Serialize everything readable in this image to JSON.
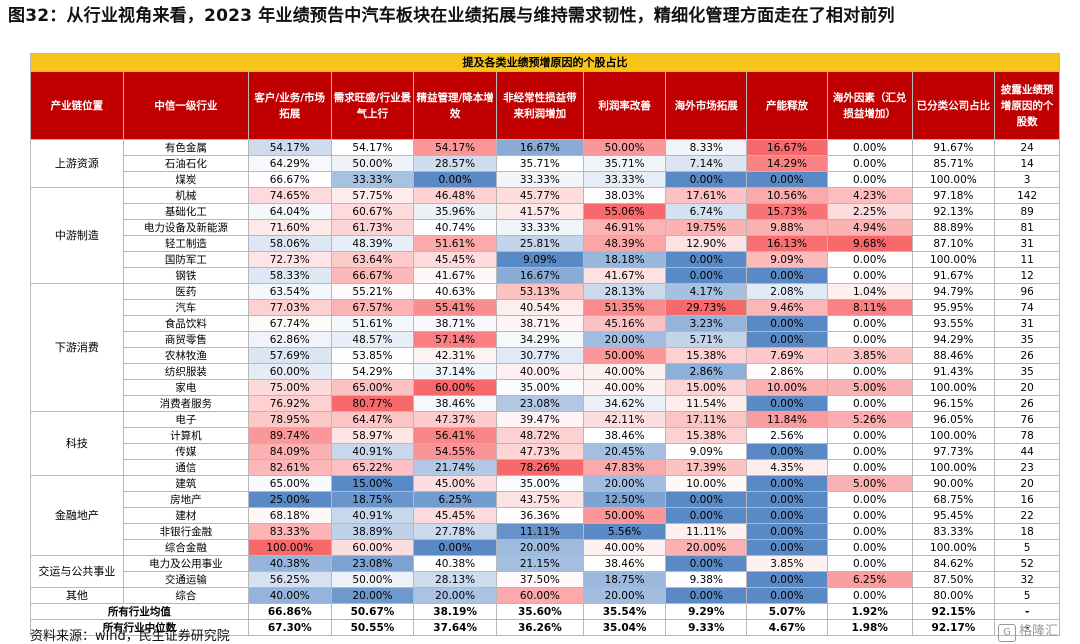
{
  "title": "图32：从行业视角来看，2023 年业绩预告中汽车板块在业绩拓展与维持需求韧性，精细化管理方面走在了相对前列",
  "table": {
    "banner": "提及各类业绩预增原因的个股占比",
    "headers": [
      "产业链位置",
      "中信一级行业",
      "客户/业务/市场拓展",
      "需求旺盛/行业景气上行",
      "精益管理/降本增效",
      "非经常性损益带来利润增加",
      "利润率改善",
      "海外市场拓展",
      "产能释放",
      "海外因素（汇兑损益增加）",
      "已分类公司占比",
      "披露业绩预增原因的个股数"
    ],
    "groups": [
      {
        "name": "上游资源",
        "rows": [
          {
            "industry": "有色金属",
            "v": [
              "54.17%",
              "54.17%",
              "54.17%",
              "16.67%",
              "50.00%",
              "8.33%",
              "16.67%",
              "0.00%",
              "91.67%"
            ],
            "n": "24"
          },
          {
            "industry": "石油石化",
            "v": [
              "64.29%",
              "50.00%",
              "28.57%",
              "35.71%",
              "35.71%",
              "7.14%",
              "14.29%",
              "0.00%",
              "85.71%"
            ],
            "n": "14"
          },
          {
            "industry": "煤炭",
            "v": [
              "66.67%",
              "33.33%",
              "0.00%",
              "33.33%",
              "33.33%",
              "0.00%",
              "0.00%",
              "0.00%",
              "100.00%"
            ],
            "n": "3"
          }
        ]
      },
      {
        "name": "中游制造",
        "rows": [
          {
            "industry": "机械",
            "v": [
              "74.65%",
              "57.75%",
              "46.48%",
              "45.77%",
              "38.03%",
              "17.61%",
              "10.56%",
              "4.23%",
              "97.18%"
            ],
            "n": "142"
          },
          {
            "industry": "基础化工",
            "v": [
              "64.04%",
              "60.67%",
              "35.96%",
              "41.57%",
              "55.06%",
              "6.74%",
              "15.73%",
              "2.25%",
              "92.13%"
            ],
            "n": "89"
          },
          {
            "industry": "电力设备及新能源",
            "v": [
              "71.60%",
              "61.73%",
              "40.74%",
              "33.33%",
              "46.91%",
              "19.75%",
              "9.88%",
              "4.94%",
              "88.89%"
            ],
            "n": "81"
          },
          {
            "industry": "轻工制造",
            "v": [
              "58.06%",
              "48.39%",
              "51.61%",
              "25.81%",
              "48.39%",
              "12.90%",
              "16.13%",
              "9.68%",
              "87.10%"
            ],
            "n": "31"
          },
          {
            "industry": "国防军工",
            "v": [
              "72.73%",
              "63.64%",
              "45.45%",
              "9.09%",
              "18.18%",
              "0.00%",
              "9.09%",
              "0.00%",
              "100.00%"
            ],
            "n": "11"
          },
          {
            "industry": "钢铁",
            "v": [
              "58.33%",
              "66.67%",
              "41.67%",
              "16.67%",
              "41.67%",
              "0.00%",
              "0.00%",
              "0.00%",
              "91.67%"
            ],
            "n": "12"
          }
        ]
      },
      {
        "name": "下游消费",
        "rows": [
          {
            "industry": "医药",
            "v": [
              "63.54%",
              "55.21%",
              "40.63%",
              "53.13%",
              "28.13%",
              "4.17%",
              "2.08%",
              "1.04%",
              "94.79%"
            ],
            "n": "96"
          },
          {
            "industry": "汽车",
            "v": [
              "77.03%",
              "67.57%",
              "55.41%",
              "40.54%",
              "51.35%",
              "29.73%",
              "9.46%",
              "8.11%",
              "95.95%"
            ],
            "n": "74"
          },
          {
            "industry": "食品饮料",
            "v": [
              "67.74%",
              "51.61%",
              "38.71%",
              "38.71%",
              "45.16%",
              "3.23%",
              "0.00%",
              "0.00%",
              "93.55%"
            ],
            "n": "31"
          },
          {
            "industry": "商贸零售",
            "v": [
              "62.86%",
              "48.57%",
              "57.14%",
              "34.29%",
              "20.00%",
              "5.71%",
              "0.00%",
              "0.00%",
              "94.29%"
            ],
            "n": "35"
          },
          {
            "industry": "农林牧渔",
            "v": [
              "57.69%",
              "53.85%",
              "42.31%",
              "30.77%",
              "50.00%",
              "15.38%",
              "7.69%",
              "3.85%",
              "88.46%"
            ],
            "n": "26"
          },
          {
            "industry": "纺织服装",
            "v": [
              "60.00%",
              "54.29%",
              "37.14%",
              "40.00%",
              "40.00%",
              "2.86%",
              "2.86%",
              "0.00%",
              "91.43%"
            ],
            "n": "35"
          },
          {
            "industry": "家电",
            "v": [
              "75.00%",
              "65.00%",
              "60.00%",
              "35.00%",
              "40.00%",
              "15.00%",
              "10.00%",
              "5.00%",
              "100.00%"
            ],
            "n": "20"
          },
          {
            "industry": "消费者服务",
            "v": [
              "76.92%",
              "80.77%",
              "38.46%",
              "23.08%",
              "34.62%",
              "11.54%",
              "0.00%",
              "0.00%",
              "96.15%"
            ],
            "n": "26"
          }
        ]
      },
      {
        "name": "科技",
        "rows": [
          {
            "industry": "电子",
            "v": [
              "78.95%",
              "64.47%",
              "47.37%",
              "39.47%",
              "42.11%",
              "17.11%",
              "11.84%",
              "5.26%",
              "96.05%"
            ],
            "n": "76"
          },
          {
            "industry": "计算机",
            "v": [
              "89.74%",
              "58.97%",
              "56.41%",
              "48.72%",
              "38.46%",
              "15.38%",
              "2.56%",
              "0.00%",
              "100.00%"
            ],
            "n": "78"
          },
          {
            "industry": "传媒",
            "v": [
              "84.09%",
              "40.91%",
              "54.55%",
              "47.73%",
              "20.45%",
              "9.09%",
              "0.00%",
              "0.00%",
              "97.73%"
            ],
            "n": "44"
          },
          {
            "industry": "通信",
            "v": [
              "82.61%",
              "65.22%",
              "21.74%",
              "78.26%",
              "47.83%",
              "17.39%",
              "4.35%",
              "0.00%",
              "100.00%"
            ],
            "n": "23"
          }
        ]
      },
      {
        "name": "金融地产",
        "rows": [
          {
            "industry": "建筑",
            "v": [
              "65.00%",
              "15.00%",
              "45.00%",
              "35.00%",
              "20.00%",
              "10.00%",
              "0.00%",
              "5.00%",
              "90.00%"
            ],
            "n": "20"
          },
          {
            "industry": "房地产",
            "v": [
              "25.00%",
              "18.75%",
              "6.25%",
              "43.75%",
              "12.50%",
              "0.00%",
              "0.00%",
              "0.00%",
              "68.75%"
            ],
            "n": "16"
          },
          {
            "industry": "建材",
            "v": [
              "68.18%",
              "40.91%",
              "45.45%",
              "36.36%",
              "50.00%",
              "0.00%",
              "0.00%",
              "0.00%",
              "95.45%"
            ],
            "n": "22"
          },
          {
            "industry": "非银行金融",
            "v": [
              "83.33%",
              "38.89%",
              "27.78%",
              "11.11%",
              "5.56%",
              "11.11%",
              "0.00%",
              "0.00%",
              "83.33%"
            ],
            "n": "18"
          },
          {
            "industry": "综合金融",
            "v": [
              "100.00%",
              "60.00%",
              "0.00%",
              "20.00%",
              "40.00%",
              "20.00%",
              "0.00%",
              "0.00%",
              "100.00%"
            ],
            "n": "5"
          }
        ]
      },
      {
        "name": "交运与公共事业",
        "rows": [
          {
            "industry": "电力及公用事业",
            "v": [
              "40.38%",
              "23.08%",
              "40.38%",
              "21.15%",
              "38.46%",
              "0.00%",
              "3.85%",
              "0.00%",
              "84.62%"
            ],
            "n": "52"
          },
          {
            "industry": "交通运输",
            "v": [
              "56.25%",
              "50.00%",
              "28.13%",
              "37.50%",
              "18.75%",
              "9.38%",
              "0.00%",
              "6.25%",
              "87.50%"
            ],
            "n": "32"
          }
        ]
      },
      {
        "name": "其他",
        "rows": [
          {
            "industry": "综合",
            "v": [
              "40.00%",
              "20.00%",
              "20.00%",
              "60.00%",
              "20.00%",
              "0.00%",
              "0.00%",
              "0.00%",
              "80.00%"
            ],
            "n": "5"
          }
        ]
      }
    ],
    "summary": [
      {
        "label": "所有行业均值",
        "v": [
          "66.86%",
          "50.67%",
          "38.19%",
          "35.60%",
          "35.54%",
          "9.29%",
          "5.07%",
          "1.92%",
          "92.15%"
        ],
        "n": "-"
      },
      {
        "label": "所有行业中位数",
        "v": [
          "67.30%",
          "50.55%",
          "37.64%",
          "36.26%",
          "35.04%",
          "9.33%",
          "4.67%",
          "1.98%",
          "92.17%"
        ],
        "n": "-"
      }
    ]
  },
  "colors": {
    "header_bg": "#c00000",
    "banner_bg": "#f7c41a",
    "high": "#f8696b",
    "low": "#5a8ac6",
    "mid": "#ffffff"
  },
  "source": "资料来源：wind，民生证券研究院",
  "watermark": "格隆汇"
}
